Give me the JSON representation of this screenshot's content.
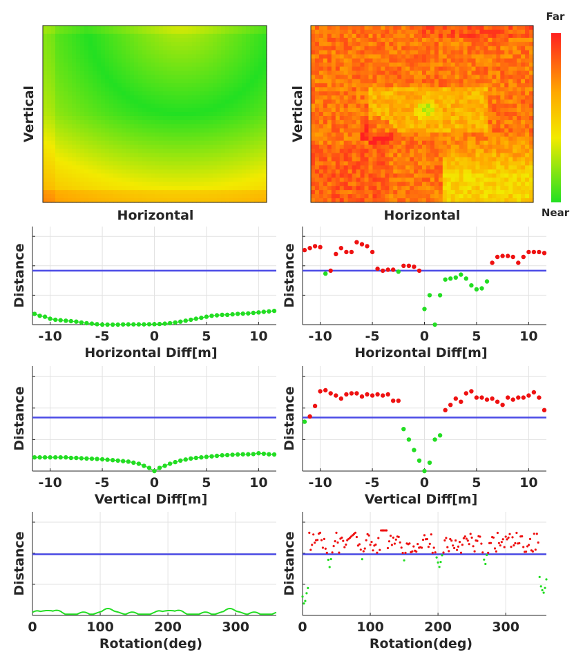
{
  "colorbar": {
    "top_label": "Far",
    "bottom_label": "Near",
    "colors": [
      "#ff1a1a",
      "#ffb000",
      "#f0f000",
      "#20e020"
    ]
  },
  "chart_data": [
    {
      "id": "heatmap-left",
      "type": "heatmap",
      "title": "",
      "xlabel": "Horizontal",
      "ylabel": "Vertical",
      "description_values": "rows top-to-bottom, 0=near(green) 1=far(red)"
    },
    {
      "id": "heatmap-right",
      "type": "heatmap",
      "title": "",
      "xlabel": "Horizontal",
      "ylabel": "Vertical"
    },
    {
      "id": "line-horizontal-left",
      "type": "scatter",
      "xlabel": "Horizontal Diff[m]",
      "ylabel": "Distance",
      "xlim": [
        -11.7,
        11.7
      ],
      "ylim": [
        0,
        1
      ],
      "xticks": [
        -10,
        -5,
        0,
        5,
        10
      ],
      "threshold": 0.55,
      "x": [
        -11.5,
        -11,
        -10.5,
        -10,
        -9.5,
        -9,
        -8.5,
        -8,
        -7.5,
        -7,
        -6.5,
        -6,
        -5.5,
        -5,
        -4.5,
        -4,
        -3.5,
        -3,
        -2.5,
        -2,
        -1.5,
        -1,
        -0.5,
        0,
        0.5,
        1,
        1.5,
        2,
        2.5,
        3,
        3.5,
        4,
        4.5,
        5,
        5.5,
        6,
        6.5,
        7,
        7.5,
        8,
        8.5,
        9,
        9.5,
        10,
        10.5,
        11,
        11.5
      ],
      "y": [
        0.11,
        0.09,
        0.08,
        0.06,
        0.05,
        0.045,
        0.04,
        0.035,
        0.03,
        0.022,
        0.015,
        0.01,
        0.005,
        0,
        0,
        0,
        0,
        0.002,
        0.003,
        0.003,
        0.003,
        0.003,
        0.004,
        0.005,
        0.006,
        0.01,
        0.015,
        0.022,
        0.03,
        0.04,
        0.05,
        0.06,
        0.07,
        0.08,
        0.09,
        0.095,
        0.1,
        0.1,
        0.105,
        0.11,
        0.112,
        0.115,
        0.12,
        0.125,
        0.13,
        0.135,
        0.14
      ]
    },
    {
      "id": "line-horizontal-right",
      "type": "scatter",
      "xlabel": "Horizontal Diff[m]",
      "ylabel": "Distance",
      "xlim": [
        -11.7,
        11.7
      ],
      "ylim": [
        0,
        1
      ],
      "xticks": [
        -10,
        -5,
        0,
        5,
        10
      ],
      "threshold": 0.55,
      "x": [
        -11.5,
        -11,
        -10.5,
        -10,
        -9.5,
        -9,
        -8.5,
        -8,
        -7.5,
        -7,
        -6.5,
        -6,
        -5.5,
        -5,
        -4.5,
        -4,
        -3.5,
        -3,
        -2.5,
        -2,
        -1.5,
        -1,
        -0.5,
        0,
        0.5,
        1,
        1.5,
        2,
        2.5,
        3,
        3.5,
        4,
        4.5,
        5,
        5.5,
        6,
        6.5,
        7,
        7.5,
        8,
        8.5,
        9,
        9.5,
        10,
        10.5,
        11,
        11.5
      ],
      "y": [
        0.76,
        0.78,
        0.8,
        0.79,
        0.52,
        0.55,
        0.72,
        0.78,
        0.74,
        0.74,
        0.84,
        0.82,
        0.8,
        0.74,
        0.57,
        0.55,
        0.56,
        0.56,
        0.54,
        0.6,
        0.6,
        0.59,
        0.55,
        0.16,
        0.3,
        0,
        0.3,
        0.46,
        0.47,
        0.48,
        0.51,
        0.47,
        0.4,
        0.36,
        0.37,
        0.44,
        0.63,
        0.69,
        0.7,
        0.7,
        0.69,
        0.63,
        0.69,
        0.74,
        0.74,
        0.74,
        0.73
      ]
    },
    {
      "id": "line-vertical-left",
      "type": "scatter",
      "xlabel": "Vertical Diff[m]",
      "ylabel": "Distance",
      "xlim": [
        -11.7,
        11.7
      ],
      "ylim": [
        0,
        1
      ],
      "xticks": [
        -10,
        -5,
        0,
        5,
        10
      ],
      "threshold": 0.51,
      "x": [
        -11.5,
        -11,
        -10.5,
        -10,
        -9.5,
        -9,
        -8.5,
        -8,
        -7.5,
        -7,
        -6.5,
        -6,
        -5.5,
        -5,
        -4.5,
        -4,
        -3.5,
        -3,
        -2.5,
        -2,
        -1.5,
        -1,
        -0.5,
        0,
        0.5,
        1,
        1.5,
        2,
        2.5,
        3,
        3.5,
        4,
        4.5,
        5,
        5.5,
        6,
        6.5,
        7,
        7.5,
        8,
        8.5,
        9,
        9.5,
        10,
        10.5,
        11,
        11.5
      ],
      "y": [
        0.13,
        0.13,
        0.13,
        0.13,
        0.13,
        0.13,
        0.13,
        0.125,
        0.125,
        0.122,
        0.12,
        0.118,
        0.115,
        0.112,
        0.108,
        0.104,
        0.1,
        0.095,
        0.09,
        0.08,
        0.07,
        0.05,
        0.03,
        0.0,
        0.03,
        0.05,
        0.07,
        0.085,
        0.1,
        0.11,
        0.12,
        0.125,
        0.13,
        0.135,
        0.14,
        0.145,
        0.15,
        0.152,
        0.155,
        0.158,
        0.16,
        0.16,
        0.162,
        0.17,
        0.165,
        0.16,
        0.158
      ]
    },
    {
      "id": "line-vertical-right",
      "type": "scatter",
      "xlabel": "Vertical Diff[m]",
      "ylabel": "Distance",
      "xlim": [
        -11.7,
        11.7
      ],
      "ylim": [
        0,
        1
      ],
      "xticks": [
        -10,
        -5,
        0,
        5,
        10
      ],
      "threshold": 0.51,
      "x": [
        -11.5,
        -11,
        -10.5,
        -10,
        -9.5,
        -9,
        -8.5,
        -8,
        -7.5,
        -7,
        -6.5,
        -6,
        -5.5,
        -5,
        -4.5,
        -4,
        -3.5,
        -3,
        -2.5,
        -2,
        -1.5,
        -1,
        -0.5,
        0,
        0.5,
        1,
        1.5,
        2,
        2.5,
        3,
        3.5,
        4,
        4.5,
        5,
        5.5,
        6,
        6.5,
        7,
        7.5,
        8,
        8.5,
        9,
        9.5,
        10,
        10.5,
        11,
        11.5
      ],
      "y": [
        0.47,
        0.52,
        0.62,
        0.76,
        0.77,
        0.74,
        0.72,
        0.69,
        0.73,
        0.74,
        0.74,
        0.71,
        0.73,
        0.72,
        0.73,
        0.72,
        0.73,
        0.67,
        0.67,
        0.4,
        0.3,
        0.2,
        0.1,
        0.0,
        0.08,
        0.3,
        0.34,
        0.58,
        0.63,
        0.69,
        0.66,
        0.74,
        0.76,
        0.7,
        0.7,
        0.68,
        0.69,
        0.66,
        0.63,
        0.7,
        0.68,
        0.7,
        0.7,
        0.72,
        0.75,
        0.7,
        0.58
      ]
    },
    {
      "id": "rotation-left",
      "type": "line",
      "xlabel": "Rotation(deg)",
      "ylabel": "Distance",
      "xlim": [
        0,
        360
      ],
      "ylim": [
        0,
        1
      ],
      "xticks": [
        0,
        100,
        200,
        300
      ],
      "threshold": 0.59
    },
    {
      "id": "rotation-right",
      "type": "scatter",
      "xlabel": "Rotation(deg)",
      "ylabel": "Distance",
      "xlim": [
        0,
        360
      ],
      "ylim": [
        0,
        1
      ],
      "xticks": [
        0,
        100,
        200,
        300
      ],
      "threshold": 0.59
    }
  ]
}
